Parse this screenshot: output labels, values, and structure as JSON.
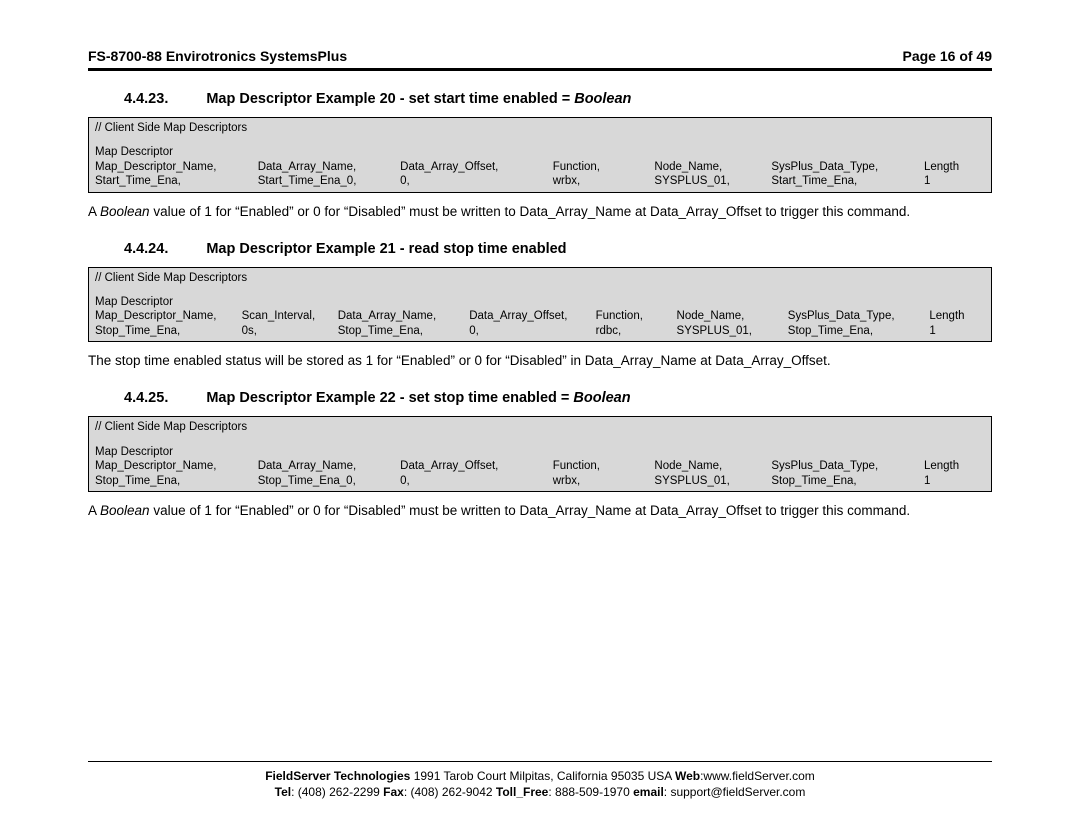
{
  "header": {
    "doc_title": "FS-8700-88 Envirotronics SystemsPlus",
    "page_label": "Page 16 of 49"
  },
  "sections": [
    {
      "number": "4.4.23.",
      "title_plain": "Map Descriptor Example 20 - set start time enabled = ",
      "title_ital": "Boolean",
      "table": {
        "comment": "//    Client Side Map Descriptors",
        "subhead": "Map Descriptor",
        "grid_template": "1.6fr 1.4fr 1.5fr 1fr 1.15fr 1.5fr 0.6fr",
        "headers": [
          "Map_Descriptor_Name,",
          "Data_Array_Name,",
          "Data_Array_Offset,",
          "Function,",
          "Node_Name,",
          "SysPlus_Data_Type,",
          "Length"
        ],
        "row": [
          "Start_Time_Ena,",
          "Start_Time_Ena_0,",
          "0,",
          "wrbx,",
          "SYSPLUS_01,",
          "Start_Time_Ena,",
          "1"
        ]
      },
      "body_prefix": "A ",
      "body_ital": "Boolean",
      "body_after": " value of 1 for “Enabled” or 0 for “Disabled” must be written to Data_Array_Name at Data_Array_Offset to trigger this command."
    },
    {
      "number": "4.4.24.",
      "title_plain": "Map Descriptor Example 21 - read stop time enabled",
      "title_ital": "",
      "table": {
        "comment": "//    Client Side Map Descriptors",
        "subhead": "Map Descriptor",
        "grid_template": "1.45fr 0.95fr 1.3fr 1.25fr 0.8fr 1.1fr 1.4fr 0.55fr",
        "headers": [
          "Map_Descriptor_Name,",
          "Scan_Interval,",
          "Data_Array_Name,",
          "Data_Array_Offset,",
          "Function,",
          "Node_Name,",
          "SysPlus_Data_Type,",
          "Length"
        ],
        "row": [
          "Stop_Time_Ena,",
          "0s,",
          "Stop_Time_Ena,",
          "0,",
          "rdbc,",
          "SYSPLUS_01,",
          "Stop_Time_Ena,",
          "1"
        ]
      },
      "body_prefix": "",
      "body_ital": "",
      "body_after": "The stop time enabled status will be stored as 1 for “Enabled” or 0 for “Disabled” in Data_Array_Name at Data_Array_Offset."
    },
    {
      "number": "4.4.25.",
      "title_plain": "Map Descriptor Example 22 - set stop time enabled = ",
      "title_ital": "Boolean",
      "table": {
        "comment": "//    Client Side Map Descriptors",
        "subhead": "Map Descriptor",
        "grid_template": "1.6fr 1.4fr 1.5fr 1fr 1.15fr 1.5fr 0.6fr",
        "headers": [
          "Map_Descriptor_Name,",
          "Data_Array_Name,",
          "Data_Array_Offset,",
          "Function,",
          "Node_Name,",
          "SysPlus_Data_Type,",
          "Length"
        ],
        "row": [
          "Stop_Time_Ena,",
          "Stop_Time_Ena_0,",
          "0,",
          "wrbx,",
          "SYSPLUS_01,",
          "Stop_Time_Ena,",
          "1"
        ]
      },
      "body_prefix": "A ",
      "body_ital": "Boolean",
      "body_after": " value of 1 for “Enabled” or 0 for “Disabled” must be written to Data_Array_Name at Data_Array_Offset to trigger this command."
    }
  ],
  "footer": {
    "line1_b1": "FieldServer Technologies",
    "line1_t1": " 1991 Tarob Court Milpitas, California 95035 USA  ",
    "line1_b2": "Web",
    "line1_t2": ":www.fieldServer.com",
    "line2_b1": "Tel",
    "line2_t1": ": (408) 262-2299  ",
    "line2_b2": "Fax",
    "line2_t2": ": (408) 262-9042  ",
    "line2_b3": "Toll_Free",
    "line2_t3": ": 888-509-1970  ",
    "line2_b4": "email",
    "line2_t4": ": support@fieldServer.com"
  }
}
